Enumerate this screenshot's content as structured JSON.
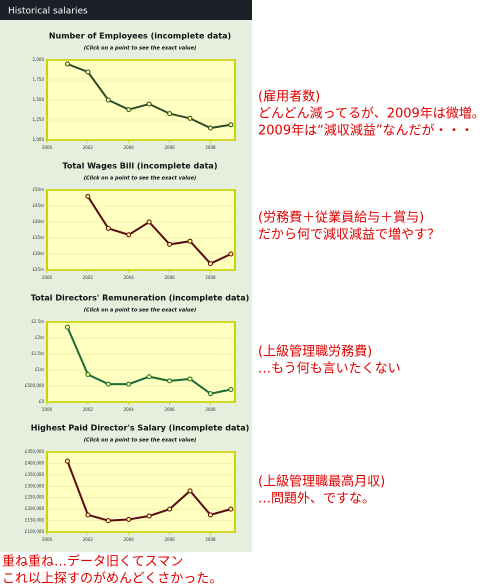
{
  "header": "Historical salaries",
  "chart_data": [
    {
      "type": "line",
      "title": "Number of Employees (incomplete data)",
      "subtitle": "(Click on a point to see the exact value)",
      "x": [
        2001,
        2002,
        2003,
        2004,
        2005,
        2006,
        2007,
        2008,
        2009
      ],
      "series": [
        {
          "color": "#2f4a2a",
          "values": [
            1950,
            1850,
            1500,
            1380,
            1450,
            1330,
            1270,
            1150,
            1190
          ]
        }
      ],
      "xlim": [
        2000,
        2009.2
      ],
      "xticks": [
        2000,
        2002,
        2004,
        2006,
        2008
      ],
      "ylim": [
        1000,
        2000
      ],
      "yticks": [
        {
          "value": 1000,
          "label": "1,000"
        },
        {
          "value": 1250,
          "label": "1,250"
        },
        {
          "value": 1500,
          "label": "1,500"
        },
        {
          "value": 1750,
          "label": "1,750"
        },
        {
          "value": 2000,
          "label": "2,000"
        }
      ],
      "grid": true
    },
    {
      "type": "line",
      "title": "Total Wages Bill (incomplete data)",
      "subtitle": "(Click on a point to see the exact value)",
      "x": [
        2001,
        2002,
        2003,
        2004,
        2005,
        2006,
        2007,
        2008,
        2009
      ],
      "series": [
        {
          "color": "#5a0a14",
          "values": [
            null,
            48,
            38,
            36,
            40,
            33,
            34,
            27,
            30
          ]
        }
      ],
      "xlim": [
        2000,
        2009.2
      ],
      "xticks": [
        2000,
        2002,
        2004,
        2006,
        2008
      ],
      "ylim": [
        25,
        50
      ],
      "yticks": [
        {
          "value": 25,
          "label": "£25m"
        },
        {
          "value": 30,
          "label": "£30m"
        },
        {
          "value": 35,
          "label": "£35m"
        },
        {
          "value": 40,
          "label": "£40m"
        },
        {
          "value": 45,
          "label": "£45m"
        },
        {
          "value": 50,
          "label": "£50m"
        }
      ],
      "grid": true
    },
    {
      "type": "line",
      "title": "Total Directors' Remuneration (incomplete data)",
      "subtitle": "(Click on a point to see the exact value)",
      "x": [
        2001,
        2002,
        2003,
        2004,
        2005,
        2006,
        2007,
        2008,
        2009
      ],
      "series": [
        {
          "color": "#1a6a3a",
          "values": [
            2340000,
            860000,
            560000,
            560000,
            790000,
            660000,
            720000,
            260000,
            390000
          ]
        }
      ],
      "xlim": [
        2000,
        2009.2
      ],
      "xticks": [
        2000,
        2002,
        2004,
        2006,
        2008
      ],
      "ylim": [
        0,
        2500000
      ],
      "yticks": [
        {
          "value": 0,
          "label": "£0"
        },
        {
          "value": 500000,
          "label": "£500,000"
        },
        {
          "value": 1000000,
          "label": "£1m"
        },
        {
          "value": 1500000,
          "label": "£1.5m"
        },
        {
          "value": 2000000,
          "label": "£2m"
        },
        {
          "value": 2500000,
          "label": "£2.5m"
        }
      ],
      "grid": true
    },
    {
      "type": "line",
      "title": "Highest Paid Director's Salary (incomplete data)",
      "subtitle": "(Click on a point to see the exact value)",
      "x": [
        2001,
        2002,
        2003,
        2004,
        2005,
        2006,
        2007,
        2008,
        2009
      ],
      "series": [
        {
          "color": "#5a0a14",
          "values": [
            410000,
            175000,
            150000,
            155000,
            170000,
            200000,
            280000,
            175000,
            200000
          ]
        }
      ],
      "xlim": [
        2000,
        2009.2
      ],
      "xticks": [
        2000,
        2002,
        2004,
        2006,
        2008
      ],
      "ylim": [
        100000,
        450000
      ],
      "yticks": [
        {
          "value": 100000,
          "label": "£100,000"
        },
        {
          "value": 150000,
          "label": "£150,000"
        },
        {
          "value": 200000,
          "label": "£200,000"
        },
        {
          "value": 250000,
          "label": "£250,000"
        },
        {
          "value": 300000,
          "label": "£300,000"
        },
        {
          "value": 350000,
          "label": "£350,000"
        },
        {
          "value": 400000,
          "label": "£400,000"
        },
        {
          "value": 450000,
          "label": "£450,000"
        }
      ],
      "grid": true
    }
  ],
  "annotations": [
    [
      "(雇用者数)",
      "どんどん減ってるが、2009年は微増。",
      "2009年は“減収減益”なんだが・・・"
    ],
    [
      "(労務費＋従業員給与＋賞与)",
      "だから何で減収減益で増やす？"
    ],
    [
      "(上級管理職労務費)",
      "…もう何も言いたくない"
    ],
    [
      "(上級管理職最高月収)",
      "…問題外、ですな。"
    ]
  ],
  "footer": [
    "重ね重ね…データ旧くてスマン",
    "これ以上探すのがめんどくさかった。"
  ]
}
